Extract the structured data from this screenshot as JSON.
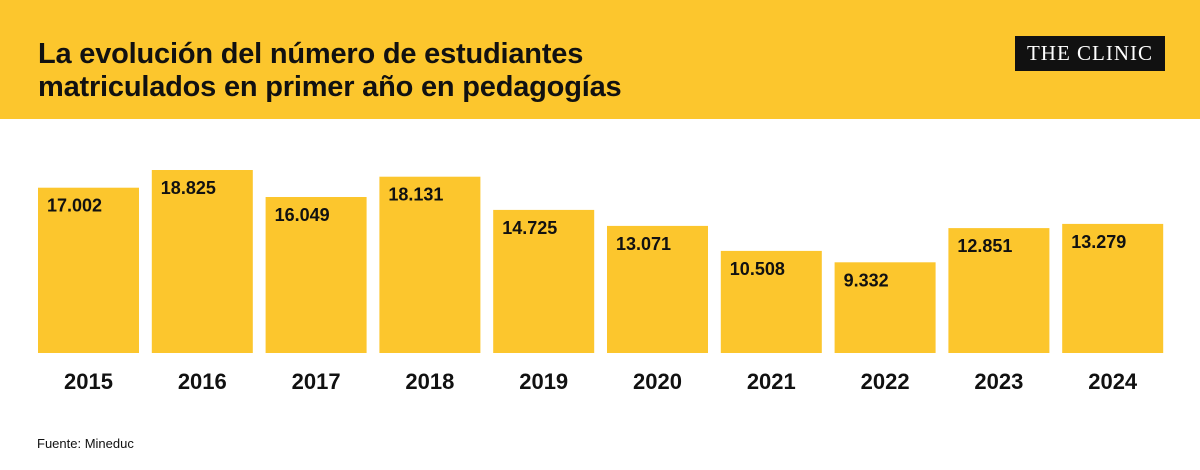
{
  "header": {
    "title_line1": "La evolución del número de estudiantes",
    "title_line2": "matriculados en primer año en pedagogías",
    "logo_text": "THE CLINIC"
  },
  "colors": {
    "bar": "#fcc62d",
    "header_bg": "#fcc62d",
    "text": "#111111"
  },
  "chart_data": {
    "type": "bar",
    "categories": [
      "2015",
      "2016",
      "2017",
      "2018",
      "2019",
      "2020",
      "2021",
      "2022",
      "2023",
      "2024"
    ],
    "values": [
      17002,
      18825,
      16049,
      18131,
      14725,
      13071,
      10508,
      9332,
      12851,
      13279
    ],
    "labels": [
      "17.002",
      "18.825",
      "16.049",
      "18.131",
      "14.725",
      "13.071",
      "10.508",
      "9.332",
      "12.851",
      "13.279"
    ],
    "title": "La evolución del número de estudiantes matriculados en primer año en pedagogías",
    "xlabel": "",
    "ylabel": "",
    "grid": false,
    "legend": "none"
  },
  "footer": {
    "source": "Fuente: Mineduc"
  }
}
